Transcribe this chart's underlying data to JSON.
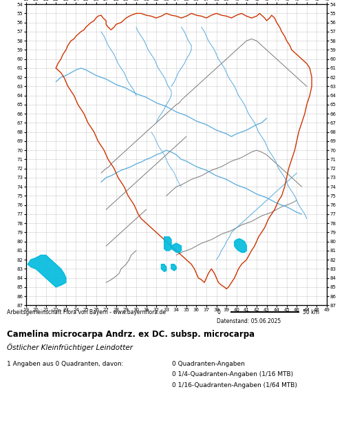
{
  "title_species": "Camelina microcarpa Andrz. ex DC. subsp. microcarpa",
  "title_common": "Östlicher Kleinfrüchtiger Leindotter",
  "credit": "Arbeitsgemeinschaft Flora von Bayern - www.bayernflora.de",
  "date": "Datenstand: 05.06.2025",
  "stat_line1": "1 Angaben aus 0 Quadranten, davon:",
  "stat_line2": "0 Quadranten-Angaben",
  "stat_line3": "0 1/4-Quadranten-Angaben (1/16 MTB)",
  "stat_line4": "0 1/16-Quadranten-Angaben (1/64 MTB)",
  "grid_color": "#cccccc",
  "background_color": "#ffffff",
  "map_bg": "#ffffff",
  "border_color_red": "#cc3300",
  "border_color_gray": "#777777",
  "river_color": "#55aadd",
  "highlight_color": "#00bbdd",
  "x_ticks": [
    19,
    20,
    21,
    22,
    23,
    24,
    25,
    26,
    27,
    28,
    29,
    30,
    31,
    32,
    33,
    34,
    35,
    36,
    37,
    38,
    39,
    40,
    41,
    42,
    43,
    44,
    45,
    46,
    47,
    48,
    49
  ],
  "y_ticks": [
    54,
    55,
    56,
    57,
    58,
    59,
    60,
    61,
    62,
    63,
    64,
    65,
    66,
    67,
    68,
    69,
    70,
    71,
    72,
    73,
    74,
    75,
    76,
    77,
    78,
    79,
    80,
    81,
    82,
    83,
    84,
    85,
    86,
    87
  ],
  "x_min": 19,
  "x_max": 49,
  "y_min": 54,
  "y_max": 87,
  "outer_x": [
    22.0,
    22.2,
    22.5,
    22.7,
    23.0,
    23.2,
    23.5,
    23.8,
    24.0,
    24.3,
    24.5,
    24.8,
    25.0,
    25.2,
    25.5,
    25.8,
    26.0,
    26.2,
    26.5,
    26.7,
    27.0,
    27.0,
    27.2,
    27.5,
    27.8,
    28.0,
    28.5,
    29.0,
    29.5,
    30.0,
    30.5,
    31.0,
    31.5,
    32.0,
    32.5,
    33.0,
    33.5,
    34.0,
    34.5,
    35.0,
    35.5,
    36.0,
    36.5,
    37.0,
    37.5,
    38.0,
    38.5,
    39.0,
    39.5,
    40.0,
    40.5,
    41.0,
    41.5,
    42.0,
    42.3,
    42.5,
    42.8,
    43.0,
    43.3,
    43.5,
    43.8,
    44.0,
    44.3,
    44.5,
    44.8,
    45.0,
    45.3,
    45.5,
    46.0,
    46.5,
    47.0,
    47.3,
    47.5,
    47.5,
    47.3,
    47.0,
    46.8,
    46.5,
    46.2,
    46.0,
    45.8,
    45.5,
    45.2,
    45.0,
    44.8,
    44.5,
    44.2,
    44.0,
    43.8,
    43.5,
    43.2,
    43.0,
    42.8,
    42.5,
    42.2,
    42.0,
    41.8,
    41.5,
    41.0,
    40.5,
    40.2,
    40.0,
    39.8,
    39.5,
    39.2,
    39.0,
    38.8,
    38.5,
    38.2,
    38.0,
    37.8,
    37.5,
    37.2,
    37.0,
    36.8,
    36.5,
    36.2,
    36.0,
    35.8,
    35.5,
    35.0,
    34.5,
    34.0,
    33.5,
    33.0,
    32.5,
    32.0,
    31.5,
    31.0,
    30.5,
    30.2,
    30.0,
    29.8,
    29.5,
    29.2,
    29.0,
    28.8,
    28.5,
    28.2,
    28.0,
    27.8,
    27.5,
    27.2,
    27.0,
    26.8,
    26.5,
    26.2,
    26.0,
    25.8,
    25.5,
    25.2,
    25.0,
    24.8,
    24.5,
    24.2,
    24.0,
    23.8,
    23.5,
    23.2,
    23.0,
    22.8,
    22.5,
    22.2,
    22.0
  ],
  "outer_y": [
    61.0,
    60.5,
    60.0,
    59.5,
    59.0,
    58.5,
    58.0,
    57.8,
    57.5,
    57.2,
    57.0,
    56.8,
    56.5,
    56.3,
    56.0,
    55.8,
    55.5,
    55.3,
    55.2,
    55.5,
    55.8,
    56.2,
    56.5,
    56.8,
    56.5,
    56.2,
    56.0,
    55.5,
    55.2,
    55.0,
    55.0,
    55.2,
    55.3,
    55.5,
    55.3,
    55.0,
    55.2,
    55.3,
    55.5,
    55.3,
    55.0,
    55.2,
    55.3,
    55.5,
    55.2,
    55.0,
    55.2,
    55.3,
    55.5,
    55.2,
    55.0,
    55.3,
    55.5,
    55.3,
    55.0,
    55.2,
    55.5,
    55.8,
    55.5,
    55.2,
    55.5,
    56.0,
    56.5,
    57.0,
    57.5,
    58.0,
    58.5,
    59.0,
    59.5,
    60.0,
    60.5,
    61.0,
    62.0,
    63.0,
    64.0,
    65.0,
    66.0,
    67.0,
    68.0,
    69.0,
    70.0,
    71.0,
    72.0,
    73.0,
    74.0,
    75.0,
    75.5,
    76.0,
    76.5,
    77.0,
    77.5,
    78.0,
    78.5,
    79.0,
    79.5,
    80.0,
    80.5,
    81.0,
    82.0,
    82.5,
    83.0,
    83.5,
    84.0,
    84.5,
    85.0,
    85.2,
    85.0,
    84.8,
    84.5,
    84.0,
    83.5,
    83.0,
    83.5,
    84.0,
    84.5,
    84.2,
    84.0,
    83.5,
    83.0,
    82.5,
    82.0,
    81.5,
    81.0,
    80.5,
    80.0,
    79.5,
    79.0,
    78.5,
    78.0,
    77.5,
    77.0,
    76.5,
    76.0,
    75.5,
    75.0,
    74.5,
    74.0,
    73.5,
    73.0,
    72.5,
    72.0,
    71.5,
    71.0,
    70.5,
    70.0,
    69.5,
    69.0,
    68.5,
    68.0,
    67.5,
    67.0,
    66.5,
    66.0,
    65.5,
    65.0,
    64.5,
    64.0,
    63.5,
    63.0,
    62.5,
    62.0,
    61.5,
    61.2,
    61.0
  ],
  "inner_gray_lines": [
    {
      "x": [
        26.5,
        27.0,
        27.3,
        27.5,
        28.0,
        28.5,
        29.0,
        29.5,
        30.0,
        30.5,
        31.0,
        31.5,
        32.0,
        32.5,
        33.0,
        33.5,
        34.0,
        34.3,
        34.5,
        35.0,
        35.5,
        36.0,
        36.5,
        37.0,
        37.5,
        38.0,
        38.5,
        39.0,
        39.5,
        40.0,
        40.5,
        41.0,
        41.5,
        42.0,
        42.5,
        43.0,
        43.5,
        44.0,
        44.5,
        45.0,
        45.5,
        46.0,
        46.5,
        47.0
      ],
      "y": [
        72.5,
        72.0,
        71.8,
        71.5,
        71.0,
        70.5,
        70.0,
        69.5,
        69.0,
        68.5,
        68.0,
        67.5,
        67.0,
        66.5,
        66.0,
        65.5,
        65.0,
        64.8,
        64.5,
        64.0,
        63.5,
        63.0,
        62.5,
        62.0,
        61.5,
        61.0,
        60.5,
        60.0,
        59.5,
        59.0,
        58.5,
        58.0,
        57.8,
        58.0,
        58.5,
        59.0,
        59.5,
        60.0,
        60.5,
        61.0,
        61.5,
        62.0,
        62.5,
        63.0
      ]
    },
    {
      "x": [
        27.0,
        27.5,
        28.0,
        28.5,
        29.0,
        29.5,
        30.0,
        30.5,
        31.0,
        31.5,
        32.0,
        32.5,
        33.0,
        33.5,
        34.0,
        34.5,
        35.0
      ],
      "y": [
        76.5,
        76.0,
        75.5,
        75.0,
        74.5,
        74.0,
        73.5,
        73.0,
        72.5,
        72.0,
        71.5,
        71.0,
        70.5,
        70.0,
        69.5,
        69.0,
        68.5
      ]
    },
    {
      "x": [
        27.0,
        27.5,
        28.0,
        28.3,
        28.5,
        29.0,
        29.3,
        29.5,
        30.0
      ],
      "y": [
        84.5,
        84.2,
        83.8,
        83.5,
        83.0,
        82.5,
        82.0,
        81.5,
        81.0
      ]
    },
    {
      "x": [
        27.0,
        27.5,
        28.0,
        28.5,
        29.0,
        29.5,
        30.0,
        30.5,
        31.0
      ],
      "y": [
        80.5,
        80.0,
        79.5,
        79.0,
        78.5,
        78.0,
        77.5,
        77.0,
        76.5
      ]
    },
    {
      "x": [
        33.0,
        33.5,
        34.0,
        34.5,
        35.0,
        35.5,
        36.0,
        36.5,
        37.0,
        37.5,
        38.0,
        38.5,
        39.0,
        39.5,
        40.0,
        40.5,
        41.0,
        41.5,
        42.0,
        42.5,
        43.0,
        43.5,
        44.0,
        44.5,
        45.0,
        45.5,
        46.0,
        46.5
      ],
      "y": [
        75.0,
        74.5,
        74.0,
        73.8,
        73.5,
        73.2,
        73.0,
        72.8,
        72.5,
        72.2,
        72.0,
        71.8,
        71.5,
        71.2,
        71.0,
        70.8,
        70.5,
        70.2,
        70.0,
        70.2,
        70.5,
        71.0,
        71.5,
        72.0,
        72.5,
        73.0,
        73.5,
        74.0
      ]
    },
    {
      "x": [
        34.0,
        34.5,
        35.0,
        35.5,
        36.0,
        36.5,
        37.0,
        37.5,
        38.0,
        38.5,
        39.0,
        39.5,
        40.0,
        40.5,
        41.0,
        41.5,
        42.0,
        42.5,
        43.0,
        43.5,
        44.0,
        44.5,
        45.0,
        45.5,
        46.0
      ],
      "y": [
        81.5,
        81.2,
        81.0,
        80.8,
        80.5,
        80.2,
        80.0,
        79.8,
        79.5,
        79.2,
        79.0,
        78.8,
        78.5,
        78.2,
        78.0,
        77.8,
        77.5,
        77.2,
        77.0,
        76.8,
        76.5,
        76.2,
        76.0,
        75.8,
        75.5
      ]
    }
  ],
  "rivers": [
    {
      "x": [
        22.0,
        22.3,
        22.5,
        23.0,
        23.5,
        24.0,
        24.5,
        25.0,
        25.5,
        26.0,
        26.5,
        27.0,
        27.5,
        28.0,
        28.5,
        29.0,
        29.5,
        30.0,
        30.5,
        31.0,
        31.5,
        32.0,
        32.5,
        33.0,
        33.5,
        34.0,
        34.5,
        35.0,
        35.5,
        36.0,
        36.5,
        37.0,
        37.5,
        38.0,
        38.5,
        39.0,
        39.5,
        40.0,
        40.5,
        41.0,
        41.5,
        42.0,
        42.5,
        43.0
      ],
      "y": [
        62.5,
        62.2,
        62.0,
        61.8,
        61.5,
        61.2,
        61.0,
        61.2,
        61.5,
        61.8,
        62.0,
        62.2,
        62.5,
        62.8,
        63.0,
        63.2,
        63.5,
        63.8,
        64.0,
        64.2,
        64.5,
        64.8,
        65.0,
        65.2,
        65.5,
        65.8,
        66.0,
        66.2,
        66.5,
        66.8,
        67.0,
        67.2,
        67.5,
        67.8,
        68.0,
        68.2,
        68.5,
        68.2,
        68.0,
        67.8,
        67.5,
        67.2,
        67.0,
        66.5
      ],
      "lw": 0.9
    },
    {
      "x": [
        26.5,
        27.0,
        27.5,
        28.0,
        28.5,
        29.0,
        29.5,
        30.0,
        30.5,
        31.0,
        31.5,
        32.0,
        32.5,
        33.0,
        33.5,
        34.0,
        34.5,
        35.0,
        35.5,
        36.0,
        36.5,
        37.0,
        37.5,
        38.0,
        38.5,
        39.0,
        39.5,
        40.0,
        40.5,
        41.0,
        41.5,
        42.0,
        42.5,
        43.0,
        43.5,
        44.0,
        44.5,
        45.0,
        45.5,
        46.0,
        46.5
      ],
      "y": [
        73.5,
        73.0,
        72.8,
        72.5,
        72.2,
        72.0,
        71.8,
        71.5,
        71.3,
        71.0,
        70.8,
        70.5,
        70.3,
        70.0,
        70.2,
        70.5,
        71.0,
        71.2,
        71.5,
        71.8,
        72.0,
        72.2,
        72.5,
        72.8,
        73.0,
        73.2,
        73.5,
        73.8,
        74.0,
        74.2,
        74.5,
        74.8,
        75.0,
        75.2,
        75.5,
        75.8,
        76.0,
        76.2,
        76.5,
        76.8,
        77.0
      ],
      "lw": 0.9
    },
    {
      "x": [
        30.0,
        30.2,
        30.5,
        30.8,
        31.0,
        31.2,
        31.5,
        31.8,
        32.0,
        32.2,
        32.5,
        32.8,
        33.0,
        33.2,
        33.5,
        33.5,
        33.3,
        33.0,
        32.8,
        32.5,
        32.2,
        32.0
      ],
      "y": [
        56.5,
        57.0,
        57.5,
        58.0,
        58.5,
        59.0,
        59.5,
        60.0,
        60.5,
        61.0,
        61.5,
        62.0,
        62.5,
        63.0,
        63.5,
        64.0,
        64.5,
        65.0,
        65.5,
        66.0,
        66.5,
        67.0
      ],
      "lw": 0.7
    },
    {
      "x": [
        34.5,
        34.8,
        35.0,
        35.2,
        35.5,
        35.5,
        35.3,
        35.0,
        34.8,
        34.5,
        34.2,
        34.0,
        33.8,
        33.5
      ],
      "y": [
        56.5,
        57.0,
        57.5,
        58.0,
        58.5,
        59.0,
        59.5,
        60.0,
        60.5,
        61.0,
        61.5,
        62.0,
        62.5,
        63.0
      ],
      "lw": 0.7
    },
    {
      "x": [
        36.5,
        36.8,
        37.0,
        37.2,
        37.5,
        37.8,
        38.0,
        38.2,
        38.5,
        38.8,
        39.0,
        39.2,
        39.5,
        39.8,
        40.0,
        40.2,
        40.5,
        40.8,
        41.0,
        41.2,
        41.5,
        41.8,
        42.0,
        42.2,
        42.5,
        42.8,
        43.0,
        43.2,
        43.5,
        43.8,
        44.0,
        44.2,
        44.5,
        44.8,
        45.0,
        45.2,
        45.5,
        45.8,
        46.0,
        46.2,
        46.5,
        46.8,
        47.0
      ],
      "y": [
        56.5,
        57.0,
        57.5,
        58.0,
        58.5,
        59.0,
        59.5,
        60.0,
        60.5,
        61.0,
        61.5,
        62.0,
        62.5,
        63.0,
        63.5,
        64.0,
        64.5,
        65.0,
        65.5,
        66.0,
        66.5,
        67.0,
        67.5,
        68.0,
        68.5,
        69.0,
        69.5,
        70.0,
        70.5,
        71.0,
        71.5,
        72.0,
        72.5,
        73.0,
        73.5,
        74.0,
        74.5,
        75.0,
        75.5,
        76.0,
        76.5,
        77.0,
        77.5
      ],
      "lw": 0.7
    },
    {
      "x": [
        38.0,
        38.3,
        38.5,
        38.8,
        39.0,
        39.3,
        39.5,
        40.0,
        40.5,
        41.0,
        41.5,
        42.0,
        42.5,
        43.0,
        43.5,
        44.0,
        44.5,
        45.0,
        45.5,
        46.0
      ],
      "y": [
        82.0,
        81.5,
        81.0,
        80.5,
        80.0,
        79.5,
        79.0,
        78.5,
        78.0,
        77.5,
        77.0,
        76.5,
        76.0,
        75.5,
        75.0,
        74.5,
        74.0,
        73.5,
        73.0,
        72.5
      ],
      "lw": 0.7
    },
    {
      "x": [
        26.5,
        26.8,
        27.0,
        27.2,
        27.5,
        27.8,
        28.0,
        28.2,
        28.5,
        28.8,
        29.0,
        29.2,
        29.5,
        29.8,
        30.0
      ],
      "y": [
        57.0,
        57.5,
        58.0,
        58.5,
        59.0,
        59.5,
        60.0,
        60.5,
        61.0,
        61.5,
        62.0,
        62.5,
        63.0,
        63.5,
        64.0
      ],
      "lw": 0.7
    },
    {
      "x": [
        31.5,
        31.8,
        32.0,
        32.2,
        32.5,
        32.8,
        33.0,
        33.2,
        33.5,
        33.8,
        34.0,
        34.2,
        34.5
      ],
      "y": [
        68.0,
        68.5,
        69.0,
        69.5,
        70.0,
        70.5,
        71.0,
        71.5,
        72.0,
        72.5,
        73.0,
        73.5,
        74.0
      ],
      "lw": 0.6
    }
  ],
  "lakes": [
    {
      "x": [
        19.2,
        19.5,
        20.0,
        20.5,
        21.0,
        21.5,
        22.0,
        22.5,
        22.8,
        23.0,
        23.0,
        22.5,
        22.0,
        21.5,
        21.0,
        20.5,
        20.0,
        19.5,
        19.2
      ],
      "y": [
        82.5,
        82.0,
        81.8,
        81.5,
        81.5,
        82.0,
        82.5,
        83.0,
        83.5,
        84.0,
        84.5,
        84.8,
        85.0,
        84.5,
        84.0,
        83.5,
        83.0,
        82.8,
        82.5
      ]
    },
    {
      "x": [
        32.8,
        33.0,
        33.3,
        33.5,
        33.5,
        33.3,
        33.0,
        32.8,
        32.8
      ],
      "y": [
        79.5,
        79.5,
        79.5,
        79.8,
        80.8,
        81.0,
        81.0,
        80.8,
        79.5
      ]
    },
    {
      "x": [
        33.5,
        33.8,
        34.0,
        34.2,
        34.5,
        34.5,
        34.3,
        34.0,
        33.8,
        33.5,
        33.5
      ],
      "y": [
        80.5,
        80.3,
        80.2,
        80.3,
        80.5,
        81.0,
        81.2,
        81.2,
        81.0,
        80.8,
        80.5
      ]
    },
    {
      "x": [
        39.8,
        40.0,
        40.3,
        40.5,
        40.8,
        41.0,
        41.0,
        40.8,
        40.5,
        40.2,
        40.0,
        39.8,
        39.8
      ],
      "y": [
        80.0,
        79.8,
        79.7,
        79.8,
        80.0,
        80.5,
        81.0,
        81.2,
        81.2,
        81.0,
        80.8,
        80.5,
        80.0
      ]
    },
    {
      "x": [
        32.5,
        32.8,
        33.0,
        33.0,
        32.8,
        32.5,
        32.5
      ],
      "y": [
        82.5,
        82.5,
        82.8,
        83.2,
        83.3,
        83.0,
        82.5
      ]
    },
    {
      "x": [
        33.5,
        33.8,
        34.0,
        34.0,
        33.8,
        33.5,
        33.5
      ],
      "y": [
        82.5,
        82.5,
        82.8,
        83.0,
        83.2,
        83.0,
        82.5
      ]
    }
  ]
}
